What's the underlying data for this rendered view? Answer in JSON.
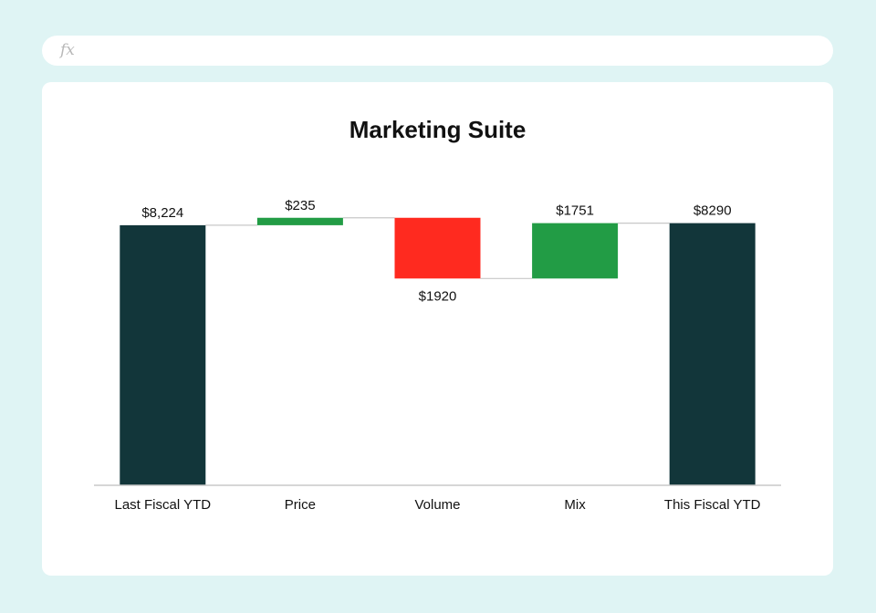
{
  "formula_bar": {
    "icon": "fx-icon",
    "value": ""
  },
  "chart_data": {
    "type": "waterfall",
    "title": "Marketing Suite",
    "categories": [
      "Last Fiscal YTD",
      "Price",
      "Volume",
      "Mix",
      "This Fiscal YTD"
    ],
    "values": [
      8224,
      235,
      -1920,
      1751,
      8290
    ],
    "kinds": [
      "total",
      "increase",
      "decrease",
      "increase",
      "total"
    ],
    "data_labels": [
      "$8,224",
      "$235",
      "$1920",
      "$1751",
      "$8290"
    ],
    "xlabel": "",
    "ylabel": "",
    "ylim": [
      0,
      9000
    ],
    "grid": false,
    "connectors": true,
    "colors": {
      "total": "#12363a",
      "increase": "#229c45",
      "decrease": "#ff2a1f",
      "axis": "#c8c8c8",
      "connector": "#c8c8c8"
    }
  }
}
